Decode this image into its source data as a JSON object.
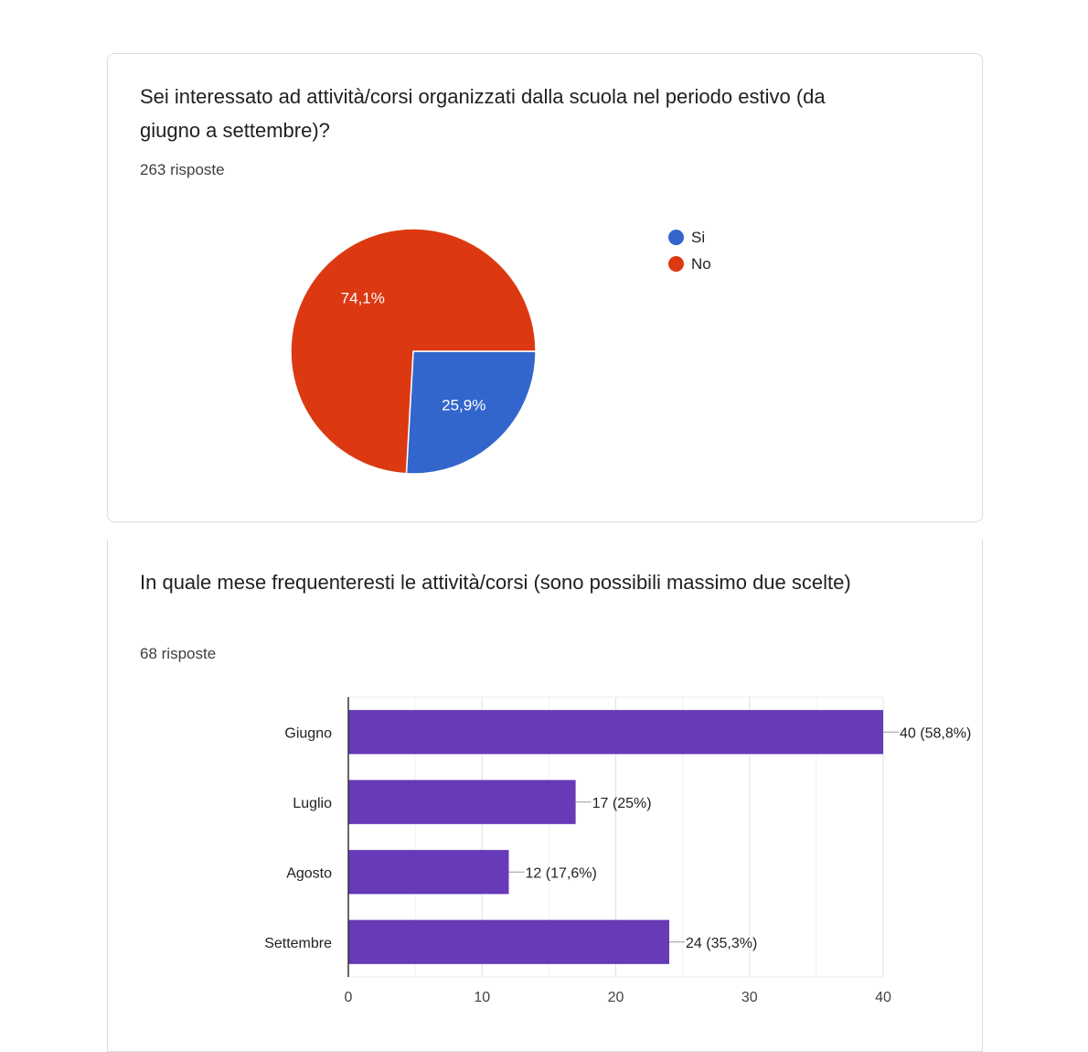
{
  "questions": [
    {
      "title": "Sei interessato ad attività/corsi organizzati dalla scuola nel periodo estivo (da giugno a settembre)?",
      "count": "263 risposte"
    },
    {
      "title": "In quale mese frequenteresti le attività/corsi (sono possibili massimo due scelte)",
      "count": "68 risposte"
    }
  ],
  "chart_data": [
    {
      "type": "pie",
      "categories": [
        "Si",
        "No"
      ],
      "values": [
        25.9,
        74.1
      ],
      "labels": [
        "25,9%",
        "74,1%"
      ],
      "colors": [
        "#3366cc",
        "#dc3912"
      ],
      "legend": "right"
    },
    {
      "type": "bar",
      "orientation": "horizontal",
      "categories": [
        "Giugno",
        "Luglio",
        "Agosto",
        "Settembre"
      ],
      "values": [
        40,
        17,
        12,
        24
      ],
      "data_labels": [
        "40 (58,8%)",
        "17 (25%)",
        "12 (17,6%)",
        "24 (35,3%)"
      ],
      "xlim": [
        0,
        40
      ],
      "xticks": [
        "0",
        "10",
        "20",
        "30",
        "40"
      ],
      "grid": true,
      "color": "#673ab7"
    }
  ]
}
